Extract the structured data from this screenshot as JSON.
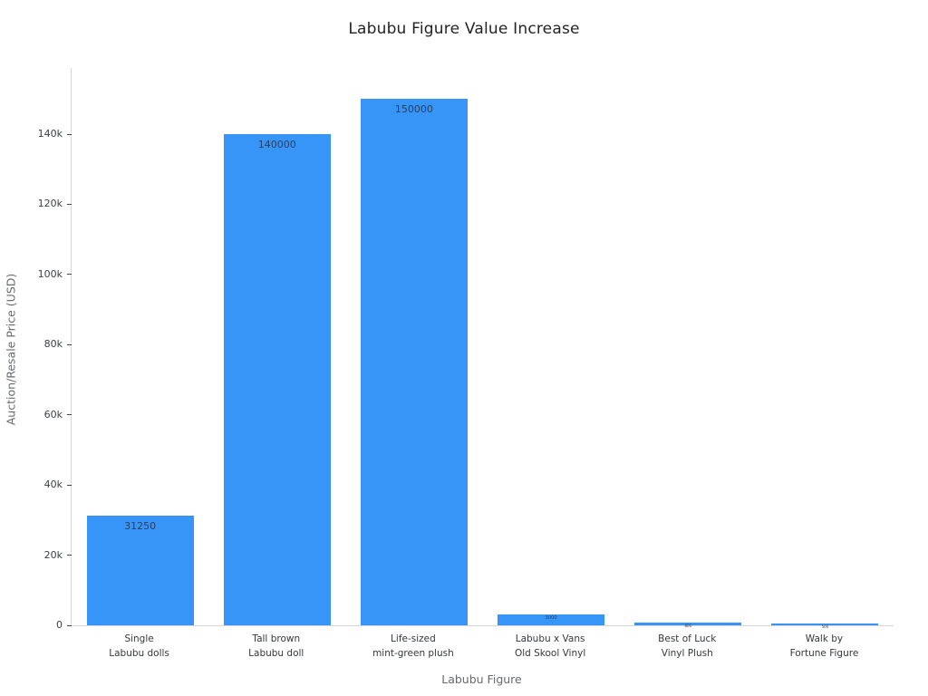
{
  "chart_data": {
    "type": "bar",
    "title": "Labubu Figure Value Increase",
    "xlabel": "Labubu Figure",
    "ylabel": "Auction/Resale Price (USD)",
    "categories": [
      [
        "Single",
        "Labubu dolls"
      ],
      [
        "Tall brown",
        "Labubu doll"
      ],
      [
        "Life-sized",
        "mint-green plush"
      ],
      [
        "Labubu x Vans",
        "Old Skool Vinyl"
      ],
      [
        "Best of Luck",
        "Vinyl Plush"
      ],
      [
        "Walk by",
        "Fortune Figure"
      ]
    ],
    "values": [
      31250,
      140000,
      150000,
      3000,
      800,
      500
    ],
    "value_labels": [
      "31250",
      "140000",
      "150000",
      "3000",
      "800",
      "500"
    ],
    "yticks": [
      {
        "value": 0,
        "label": "0"
      },
      {
        "value": 20000,
        "label": "20k"
      },
      {
        "value": 40000,
        "label": "40k"
      },
      {
        "value": 60000,
        "label": "60k"
      },
      {
        "value": 80000,
        "label": "80k"
      },
      {
        "value": 100000,
        "label": "100k"
      },
      {
        "value": 120000,
        "label": "120k"
      },
      {
        "value": 140000,
        "label": "140k"
      }
    ],
    "ylim": [
      0,
      158800
    ],
    "grid": false,
    "legend": "none",
    "bar_color": "#3795f7",
    "value_label_color": "#2a3f5f"
  }
}
